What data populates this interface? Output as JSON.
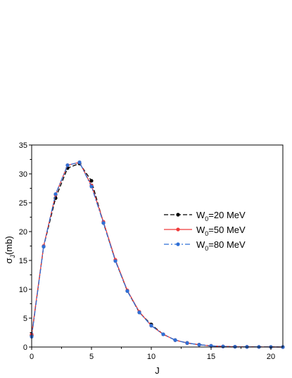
{
  "chart_data": {
    "type": "line",
    "xlabel": "J",
    "ylabel": {
      "base": "σ",
      "sub": "J",
      "tail": "(mb)"
    },
    "xlim": [
      0,
      21
    ],
    "ylim": [
      0,
      35
    ],
    "xticks": [
      0,
      5,
      10,
      15,
      20
    ],
    "yticks": [
      0,
      5,
      10,
      15,
      20,
      25,
      30,
      35
    ],
    "grid": false,
    "legend_position": "right-center",
    "series": [
      {
        "name": {
          "base": "W",
          "sub": "0",
          "tail": "=20 MeV"
        },
        "color": "#000000",
        "line_style": "dashed",
        "x": [
          0,
          1,
          2,
          3,
          4,
          5,
          6,
          7,
          8,
          9,
          10,
          11,
          12,
          13,
          14,
          15,
          16,
          17,
          18,
          19,
          20,
          21
        ],
        "values": [
          2.0,
          17.4,
          25.8,
          31.0,
          31.8,
          28.8,
          21.5,
          15.0,
          9.7,
          6.0,
          3.9,
          2.2,
          1.2,
          0.7,
          0.4,
          0.2,
          0.1,
          0.05,
          0.03,
          0.02,
          0.01,
          0.0
        ]
      },
      {
        "name": {
          "base": "W",
          "sub": "0",
          "tail": "=50 MeV"
        },
        "color": "#ef3b3b",
        "line_style": "solid",
        "x": [
          0,
          1,
          2,
          3,
          4,
          5,
          6,
          7,
          8,
          9,
          10,
          11,
          12,
          13,
          14,
          15,
          16,
          17,
          18,
          19,
          20,
          21
        ],
        "values": [
          2.2,
          17.5,
          26.4,
          31.5,
          32.0,
          28.0,
          21.7,
          15.1,
          9.8,
          6.1,
          3.7,
          2.2,
          1.2,
          0.7,
          0.4,
          0.2,
          0.1,
          0.05,
          0.03,
          0.02,
          0.01,
          0.0
        ]
      },
      {
        "name": {
          "base": "W",
          "sub": "0",
          "tail": "=80 MeV"
        },
        "color": "#2f6fd6",
        "line_style": "dash-dot",
        "x": [
          0,
          1,
          2,
          3,
          4,
          5,
          6,
          7,
          8,
          9,
          10,
          11,
          12,
          13,
          14,
          15,
          16,
          17,
          18,
          19,
          20,
          21
        ],
        "values": [
          1.8,
          17.4,
          26.5,
          31.5,
          32.0,
          27.8,
          21.5,
          14.9,
          9.7,
          6.0,
          3.7,
          2.2,
          1.2,
          0.7,
          0.4,
          0.2,
          0.1,
          0.05,
          0.03,
          0.02,
          0.01,
          0.0
        ]
      }
    ]
  }
}
